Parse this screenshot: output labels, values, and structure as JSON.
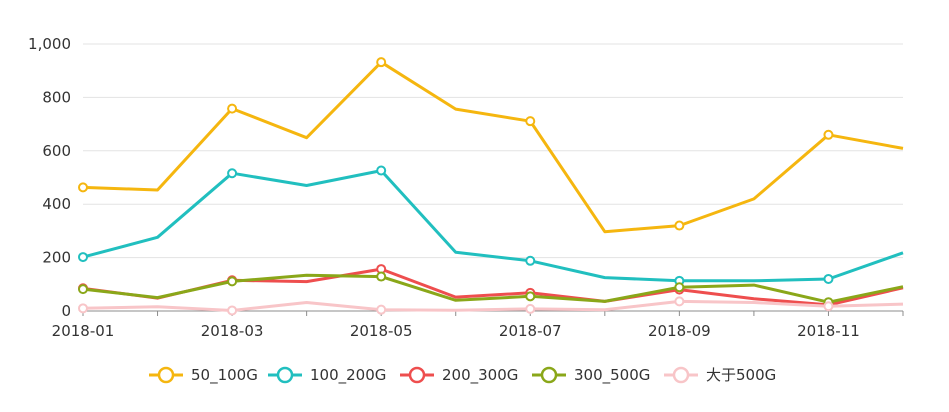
{
  "chart_data": {
    "type": "line",
    "title": "",
    "xlabel": "",
    "ylabel": "",
    "x": [
      "2018-01",
      "2018-02",
      "2018-03",
      "2018-04",
      "2018-05",
      "2018-06",
      "2018-07",
      "2018-08",
      "2018-09",
      "2018-10",
      "2018-11",
      "2018-12"
    ],
    "x_tick_labels": [
      "2018-01",
      "2018-03",
      "2018-05",
      "2018-07",
      "2018-09",
      "2018-11"
    ],
    "y_ticks": [
      "0",
      "200",
      "400",
      "600",
      "800",
      "1,000"
    ],
    "ylim": [
      0,
      1000
    ],
    "grid": true,
    "legend_position": "bottom",
    "series": [
      {
        "name": "50_100G",
        "color": "#f5b60f",
        "values": [
          463,
          453,
          758,
          649,
          932,
          756,
          711,
          297,
          320,
          420,
          660,
          609
        ]
      },
      {
        "name": "100_200G",
        "color": "#21bfbf",
        "values": [
          202,
          276,
          516,
          470,
          526,
          220,
          188,
          125,
          113,
          113,
          120,
          218
        ]
      },
      {
        "name": "200_300G",
        "color": "#ee4e4e",
        "values": [
          85,
          48,
          115,
          110,
          157,
          52,
          68,
          36,
          80,
          46,
          23,
          87
        ]
      },
      {
        "name": "300_500G",
        "color": "#8aa719",
        "values": [
          82,
          50,
          111,
          134,
          129,
          40,
          55,
          36,
          89,
          97,
          33,
          91
        ]
      },
      {
        "name": "大于500G",
        "color": "#f8c5c8",
        "values": [
          10,
          16,
          2,
          32,
          5,
          3,
          8,
          5,
          36,
          32,
          18,
          26
        ]
      }
    ]
  }
}
